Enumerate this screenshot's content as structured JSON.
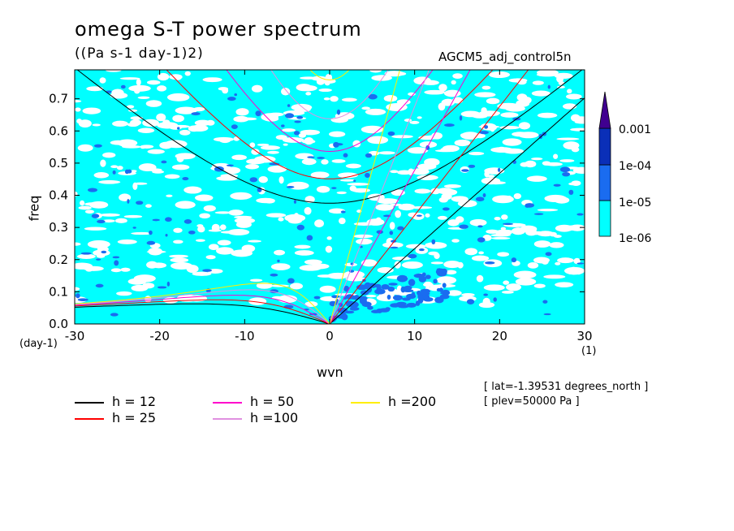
{
  "header": {
    "title": "omega S-T power spectrum",
    "units": "((Pa s-1 day-1)2)",
    "run_name": "AGCM5_adj_control5n"
  },
  "chart_data": {
    "type": "heatmap",
    "xlabel": "wvn",
    "ylabel": "freq",
    "xunits": "(1)",
    "yunits": "(day-1)",
    "xlim": [
      -30,
      30
    ],
    "ylim": [
      0,
      0.79
    ],
    "xticks": [
      -30,
      -20,
      -10,
      0,
      10,
      20,
      30
    ],
    "xtick_labels": [
      "-30",
      "-20",
      "-10",
      "0",
      "10",
      "20",
      "30"
    ],
    "yticks": [
      0,
      0.1,
      0.2,
      0.3,
      0.4,
      0.5,
      0.6,
      0.7
    ],
    "ytick_labels": [
      "0.0",
      "0.1",
      "0.2",
      "0.3",
      "0.4",
      "0.5",
      "0.6",
      "0.7"
    ],
    "colorbar": {
      "levels": [
        "1e-06",
        "1e-05",
        "1e-04",
        "0.001"
      ],
      "colors": [
        "#00ffff",
        "#1a6cf0",
        "#0a2fb8",
        "#1a0a8c",
        "#400090"
      ]
    },
    "dispersion_curves": [
      {
        "name": "h = 12",
        "h": 12,
        "color": "#000000"
      },
      {
        "name": "h = 25",
        "h": 25,
        "color": "#ff0000"
      },
      {
        "name": "h = 50",
        "h": 50,
        "color": "#ff00cc"
      },
      {
        "name": "h =100",
        "h": 100,
        "color": "#e090e0"
      },
      {
        "name": "h =200",
        "h": 200,
        "color": "#ffee00"
      }
    ],
    "annotations": [
      "[ lat=-1.39531 degrees_north ]",
      "[ plev=50000 Pa ]"
    ]
  }
}
